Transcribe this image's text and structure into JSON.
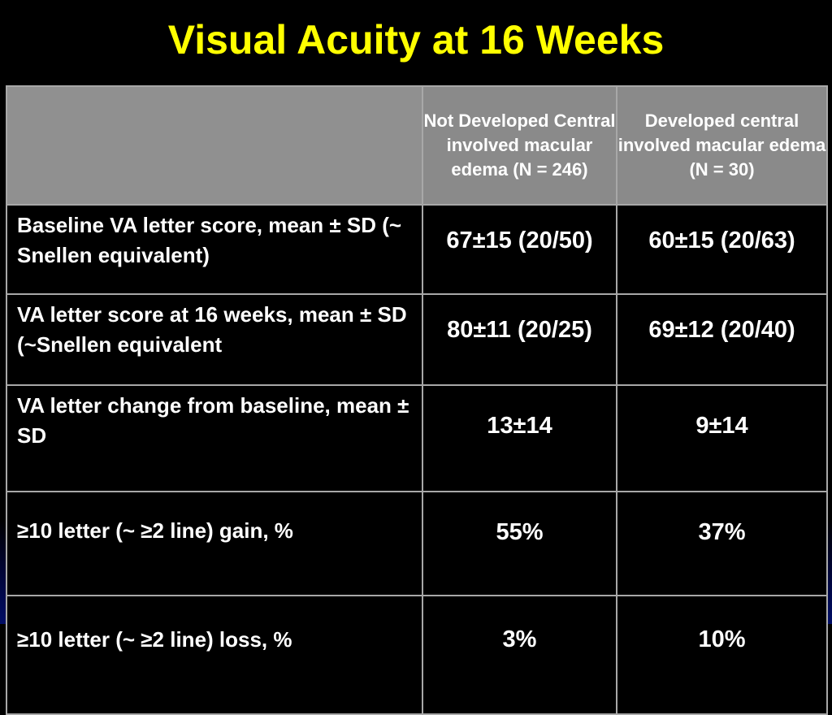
{
  "slide": {
    "title": "Visual Acuity at 16 Weeks"
  },
  "table": {
    "header": {
      "col1": "",
      "col2": "Not Developed Central involved macular edema (N = 246)",
      "col3": "Developed central involved macular edema  (N = 30)"
    },
    "rows": [
      {
        "label": "Baseline VA letter score, mean ± SD (~ Snellen equivalent)",
        "not_developed": "67±15 (20/50)",
        "developed": "60±15 (20/63)"
      },
      {
        "label": "VA letter score at 16 weeks, mean ± SD (~Snellen equivalent",
        "not_developed": "80±11 (20/25)",
        "developed": "69±12 (20/40)"
      },
      {
        "label": "VA letter change from baseline, mean ± SD",
        "not_developed": "13±14",
        "developed": "9±14"
      },
      {
        "label": "≥10 letter (~ ≥2 line) gain, %",
        "not_developed": "55%",
        "developed": "37%"
      },
      {
        "label": "≥10 letter (~ ≥2 line) loss, %",
        "not_developed": "3%",
        "developed": "10%"
      }
    ]
  },
  "colors": {
    "title": "#ffff00",
    "header_bg": "#8a8a8a",
    "cell_bg": "#000000",
    "border": "#a8a8a8",
    "text": "#ffffff"
  }
}
